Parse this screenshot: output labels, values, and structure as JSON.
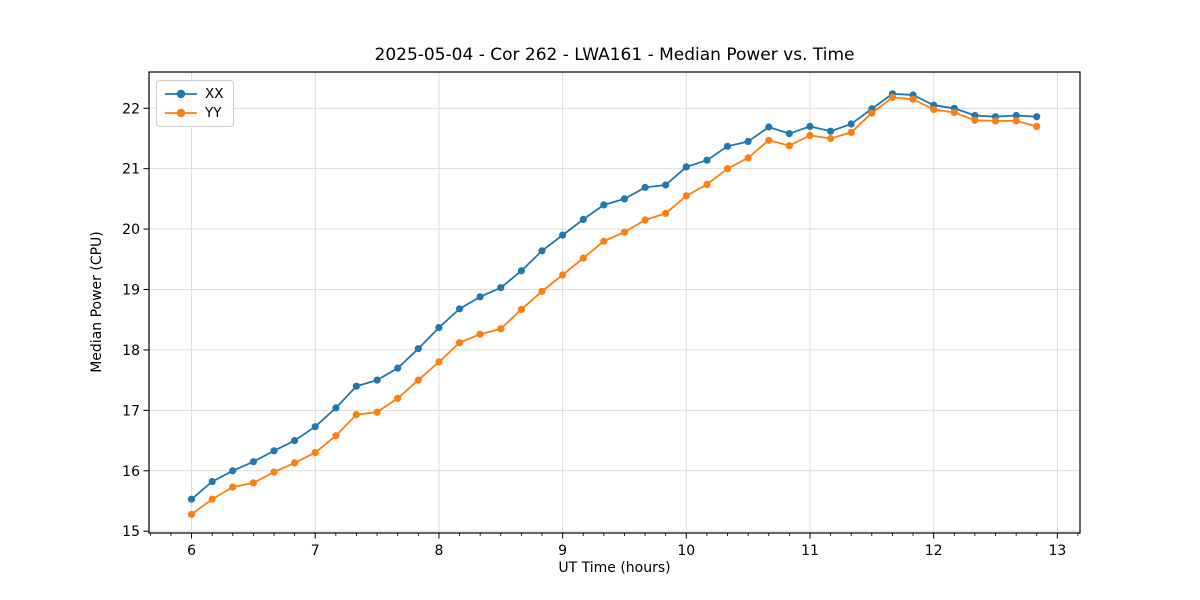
{
  "chart_data": {
    "type": "line",
    "title": "2025-05-04 - Cor 262 - LWA161 - Median Power vs. Time",
    "xlabel": "UT Time (hours)",
    "ylabel": "Median Power (CPU)",
    "xlim": [
      5.656,
      13.183
    ],
    "ylim": [
      14.97,
      22.6
    ],
    "x_major_ticks": [
      6,
      7,
      8,
      9,
      10,
      11,
      12,
      13
    ],
    "x_tick_labels": [
      "6",
      "7",
      "8",
      "9",
      "10",
      "11",
      "12",
      "13"
    ],
    "x_minor_tick_step_hours": 0.1667,
    "y_major_ticks": [
      15,
      16,
      17,
      18,
      19,
      20,
      21,
      22
    ],
    "y_tick_labels": [
      "15",
      "16",
      "17",
      "18",
      "19",
      "20",
      "21",
      "22"
    ],
    "grid": true,
    "grid_color": "#dcdcdc",
    "spine_color": "#000000",
    "legend_position": "upper-left",
    "x": [
      6.0,
      6.167,
      6.333,
      6.5,
      6.667,
      6.833,
      7.0,
      7.167,
      7.333,
      7.5,
      7.667,
      7.833,
      8.0,
      8.167,
      8.333,
      8.5,
      8.667,
      8.833,
      9.0,
      9.167,
      9.333,
      9.5,
      9.667,
      9.833,
      10.0,
      10.167,
      10.333,
      10.5,
      10.667,
      10.833,
      11.0,
      11.167,
      11.333,
      11.5,
      11.667,
      11.833,
      12.0,
      12.167,
      12.333,
      12.5,
      12.667,
      12.833
    ],
    "series": [
      {
        "name": "XX",
        "color": "#1f77b4",
        "values": [
          15.53,
          15.82,
          16.0,
          16.15,
          16.33,
          16.5,
          16.73,
          17.04,
          17.4,
          17.5,
          17.7,
          18.02,
          18.37,
          18.68,
          18.88,
          19.03,
          19.31,
          19.64,
          19.9,
          20.16,
          20.4,
          20.5,
          20.69,
          20.73,
          21.03,
          21.14,
          21.37,
          21.45,
          21.69,
          21.58,
          21.7,
          21.62,
          21.74,
          21.99,
          22.24,
          22.22,
          22.05,
          22.0,
          21.88,
          21.86,
          21.88,
          21.86
        ]
      },
      {
        "name": "YY",
        "color": "#ff7f0e",
        "values": [
          15.28,
          15.53,
          15.73,
          15.8,
          15.98,
          16.13,
          16.3,
          16.58,
          16.93,
          16.97,
          17.2,
          17.5,
          17.8,
          18.12,
          18.26,
          18.35,
          18.67,
          18.97,
          19.24,
          19.52,
          19.8,
          19.95,
          20.15,
          20.26,
          20.55,
          20.74,
          21.0,
          21.18,
          21.47,
          21.38,
          21.55,
          21.5,
          21.6,
          21.92,
          22.18,
          22.15,
          21.98,
          21.93,
          21.8,
          21.79,
          21.79,
          21.7
        ]
      }
    ]
  }
}
